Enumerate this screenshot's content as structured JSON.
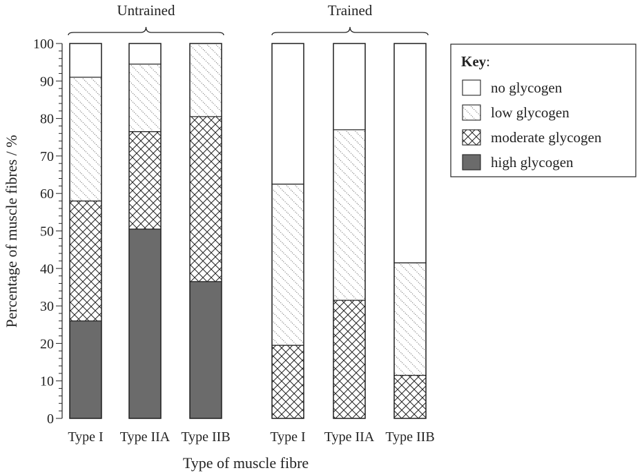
{
  "chart_data": {
    "type": "bar",
    "stacked": true,
    "xlabel": "Type of muscle fibre",
    "ylabel": "Percentage of muscle fibres / %",
    "ylim": [
      0,
      100
    ],
    "yticks": [
      0,
      10,
      20,
      30,
      40,
      50,
      60,
      70,
      80,
      90,
      100
    ],
    "groups": [
      {
        "label": "Untrained",
        "categories": [
          "Type I",
          "Type IIA",
          "Type IIB"
        ]
      },
      {
        "label": "Trained",
        "categories": [
          "Type I",
          "Type IIA",
          "Type IIB"
        ]
      }
    ],
    "categories": [
      "Type I",
      "Type IIA",
      "Type IIB",
      "Type I",
      "Type IIA",
      "Type IIB"
    ],
    "series": [
      {
        "name": "high glycogen",
        "pattern": "solid",
        "values": [
          26,
          50.5,
          36.5,
          0,
          0,
          0
        ]
      },
      {
        "name": "moderate glycogen",
        "pattern": "crosshatch",
        "values": [
          32,
          26,
          44,
          19.5,
          31.5,
          11.5
        ]
      },
      {
        "name": "low glycogen",
        "pattern": "dotted-diagonal",
        "values": [
          33,
          18,
          19.5,
          43,
          45.5,
          30
        ]
      },
      {
        "name": "no glycogen",
        "pattern": "white",
        "values": [
          9,
          5.5,
          0,
          37.5,
          23,
          58.5
        ]
      }
    ],
    "legend": {
      "title": "Key",
      "title_suffix": ":",
      "position": "right",
      "order": [
        "no glycogen",
        "low glycogen",
        "moderate glycogen",
        "high glycogen"
      ]
    },
    "colors": {
      "high": "#6b6b6b",
      "outline": "#222222",
      "background": "#ffffff"
    },
    "grid": false
  }
}
